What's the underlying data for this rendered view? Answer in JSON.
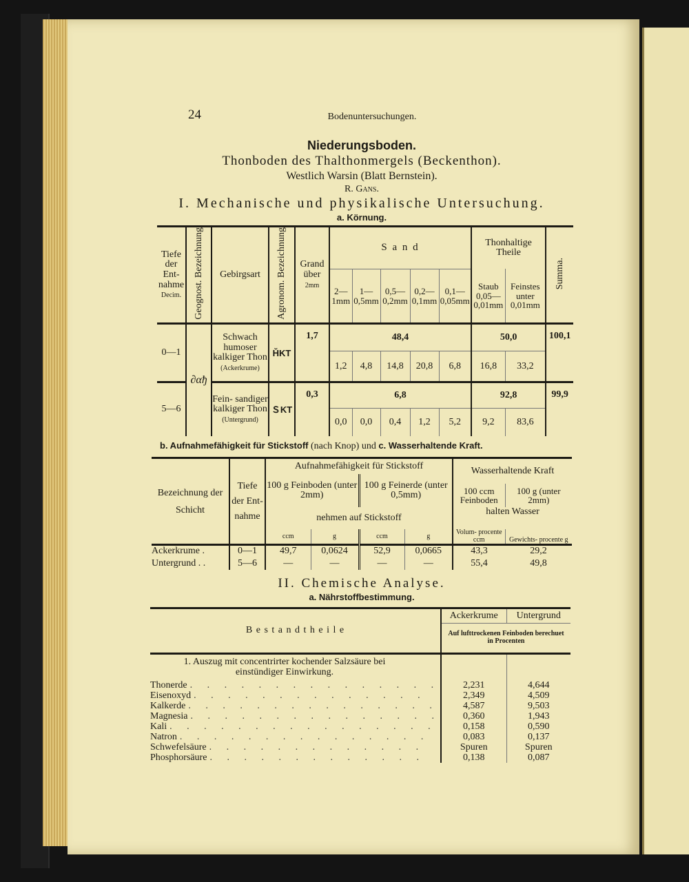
{
  "header": {
    "page_number": "24",
    "running_title": "Bodenuntersuchungen."
  },
  "title": "Niederungsboden.",
  "subtitle": "Thonboden des Thalthonmergels (Beckenthon).",
  "location": "Westlich Warsin (Blatt Bernstein).",
  "author": "R. Gans.",
  "section1": {
    "heading": "I. Mechanische und physikalische Untersuchung.",
    "sub_a": "a. Körnung."
  },
  "table1": {
    "headers": {
      "tiefe": "Tiefe der Ent- nahme",
      "decim": "Decim.",
      "geognost": "Geognost. Bezeichnung",
      "gebirgsart": "Gebirgsart",
      "agronom": "Agronom. Bezeichnung",
      "grand": "Grand über",
      "grand_unit": "2mm",
      "sand": "S a n d",
      "sand_sub": [
        "2— 1mm",
        "1— 0,5mm",
        "0,5— 0,2mm",
        "0,2— 0,1mm",
        "0,1— 0,05mm"
      ],
      "thon": "Thonhaltige Theile",
      "thon_sub": [
        "Staub 0,05— 0,01mm",
        "Feinstes unter 0,01mm"
      ],
      "summa": "Summa."
    },
    "geognost_value": "∂αђ",
    "rows": [
      {
        "tiefe": "0—1",
        "gebirgsart": "Schwach humoser kalkiger Thon",
        "note": "(Ackerkrume)",
        "agronom": "ȞKT",
        "grand": "1,7",
        "sand_total": "48,4",
        "sand": [
          "1,2",
          "4,8",
          "14,8",
          "20,8",
          "6,8"
        ],
        "thon_total": "50,0",
        "thon": [
          "16,8",
          "33,2"
        ],
        "summa": "100,1"
      },
      {
        "tiefe": "5—6",
        "gebirgsart": "Fein- sandiger kalkiger Thon",
        "note": "(Untergrund)",
        "agronom": "ＳKT",
        "grand": "0,3",
        "sand_total": "6,8",
        "sand": [
          "0,0",
          "0,0",
          "0,4",
          "1,2",
          "5,2"
        ],
        "thon_total": "92,8",
        "thon": [
          "9,2",
          "83,6"
        ],
        "summa": "99,9"
      }
    ]
  },
  "section1b": {
    "b_bold": "b. Aufnahmefähigkeit für Stickstoff",
    "b_rest": "(nach Knop) und",
    "c_bold": "c. Wasserhaltende Kraft."
  },
  "table2": {
    "headers": {
      "bezeichnung": "Bezeichnung der Schicht",
      "tiefe": "Tiefe der Ent- nahme",
      "aufnahme": "Aufnahmefähigkeit für Stickstoff",
      "feinboden": "100 g Feinboden (unter 2mm)",
      "feinerde": "100 g Feinerde (unter 0,5mm)",
      "nehmen": "nehmen auf Stickstoff",
      "units": [
        "ccm",
        "g",
        "ccm",
        "g"
      ],
      "wasser": "Wasserhaltende Kraft",
      "w1": "100 ccm Feinboden",
      "w2": "100 g (unter 2mm)",
      "halten": "halten Wasser",
      "volum": "Volum- procente ccm",
      "gewicht": "Gewichts- procente g"
    },
    "rows": [
      {
        "name": "Ackerkrume .",
        "tiefe": "0—1",
        "v": [
          "49,7",
          "0,0624",
          "52,9",
          "0,0665",
          "43,3",
          "29,2"
        ]
      },
      {
        "name": "Untergrund . .",
        "tiefe": "5—6",
        "v": [
          "—",
          "—",
          "—",
          "—",
          "55,4",
          "49,8"
        ]
      }
    ]
  },
  "section2": {
    "heading": "II. Chemische Analyse.",
    "sub_a": "a. Nährstoffbestimmung."
  },
  "table3": {
    "headers": {
      "bestandtheile": "B e s t a n d t h e i l e",
      "col1": "Ackerkrume",
      "col2": "Untergrund",
      "basis": "Auf lufttrockenen Feinboden berechuet in Procenten"
    },
    "group": "1. Auszug mit concentrirter kochender Salzsäure bei einstündiger Einwirkung.",
    "rows": [
      {
        "name": "Thonerde",
        "a": "2,231",
        "u": "4,644"
      },
      {
        "name": "Eisenoxyd",
        "a": "2,349",
        "u": "4,509"
      },
      {
        "name": "Kalkerde",
        "a": "4,587",
        "u": "9,503"
      },
      {
        "name": "Magnesia",
        "a": "0,360",
        "u": "1,943"
      },
      {
        "name": "Kali",
        "a": "0,158",
        "u": "0,590"
      },
      {
        "name": "Natron",
        "a": "0,083",
        "u": "0,137"
      },
      {
        "name": "Schwefelsäure",
        "a": "Spuren",
        "u": "Spuren"
      },
      {
        "name": "Phosphorsäure",
        "a": "0,138",
        "u": "0,087"
      }
    ]
  }
}
